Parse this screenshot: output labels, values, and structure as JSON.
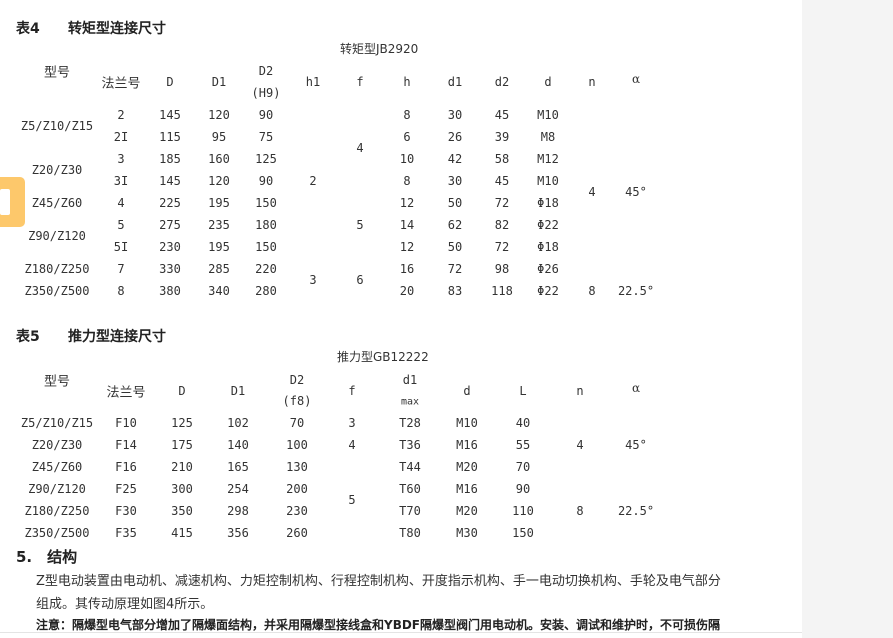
{
  "table4": {
    "label": "表4",
    "title": "转矩型连接尺寸",
    "subtitle": "转矩型JB2920",
    "model_header": "型号",
    "headers": [
      "法兰号",
      "D",
      "D1",
      "D2",
      "h1",
      "f",
      "h",
      "d1",
      "d2",
      "d",
      "n",
      "α"
    ],
    "d2_sub": "(H9)",
    "models": [
      {
        "text": "Z5/Z10/Z15",
        "rows": [
          0,
          1
        ]
      },
      {
        "text": "Z20/Z30",
        "rows": [
          2,
          3
        ]
      },
      {
        "text": "Z45/Z60",
        "rows": [
          4,
          4
        ]
      },
      {
        "text": "Z90/Z120",
        "rows": [
          5,
          6
        ]
      },
      {
        "text": "Z180/Z250",
        "rows": [
          7,
          7
        ]
      },
      {
        "text": "Z350/Z500",
        "rows": [
          8,
          8
        ]
      }
    ],
    "rows": [
      [
        "2",
        "145",
        "120",
        "90",
        "8",
        "30",
        "45",
        "M10"
      ],
      [
        "2I",
        "115",
        "95",
        "75",
        "6",
        "26",
        "39",
        "M8"
      ],
      [
        "3",
        "185",
        "160",
        "125",
        "10",
        "42",
        "58",
        "M12"
      ],
      [
        "3I",
        "145",
        "120",
        "90",
        "8",
        "30",
        "45",
        "M10"
      ],
      [
        "4",
        "225",
        "195",
        "150",
        "12",
        "50",
        "72",
        "Φ18"
      ],
      [
        "5",
        "275",
        "235",
        "180",
        "14",
        "62",
        "82",
        "Φ22"
      ],
      [
        "5I",
        "230",
        "195",
        "150",
        "12",
        "50",
        "72",
        "Φ18"
      ],
      [
        "7",
        "330",
        "285",
        "220",
        "16",
        "72",
        "98",
        "Φ26"
      ],
      [
        "8",
        "380",
        "340",
        "280",
        "20",
        "83",
        "118",
        "Φ22"
      ]
    ],
    "h1": [
      {
        "text": "2",
        "rows": [
          0,
          6
        ]
      },
      {
        "text": "3",
        "rows": [
          7,
          8
        ]
      }
    ],
    "f": [
      {
        "text": "4",
        "rows": [
          0,
          3
        ]
      },
      {
        "text": "5",
        "rows": [
          4,
          6
        ]
      },
      {
        "text": "6",
        "rows": [
          7,
          8
        ]
      }
    ],
    "n": [
      {
        "text": "4",
        "rows": [
          0,
          7
        ]
      },
      {
        "text": "8",
        "rows": [
          8,
          8
        ]
      }
    ],
    "alpha": [
      {
        "text": "45°",
        "rows": [
          0,
          7
        ]
      },
      {
        "text": "22.5°",
        "rows": [
          8,
          8
        ]
      }
    ]
  },
  "table5": {
    "label": "表5",
    "title": "推力型连接尺寸",
    "subtitle": "推力型GB12222",
    "model_header": "型号",
    "headers": [
      "法兰号",
      "D",
      "D1",
      "D2",
      "f",
      "d1",
      "d",
      "L",
      "n",
      "α"
    ],
    "d2_sub": "(f8)",
    "d1_sub": "max",
    "rows": [
      [
        "Z5/Z10/Z15",
        "F10",
        "125",
        "102",
        "70",
        "T28",
        "M10",
        "40"
      ],
      [
        "Z20/Z30",
        "F14",
        "175",
        "140",
        "100",
        "T36",
        "M16",
        "55"
      ],
      [
        "Z45/Z60",
        "F16",
        "210",
        "165",
        "130",
        "T44",
        "M20",
        "70"
      ],
      [
        "Z90/Z120",
        "F25",
        "300",
        "254",
        "200",
        "T60",
        "M16",
        "90"
      ],
      [
        "Z180/Z250",
        "F30",
        "350",
        "298",
        "230",
        "T70",
        "M20",
        "110"
      ],
      [
        "Z350/Z500",
        "F35",
        "415",
        "356",
        "260",
        "T80",
        "M30",
        "150"
      ]
    ],
    "f": [
      {
        "text": "3",
        "rows": [
          0,
          0
        ]
      },
      {
        "text": "4",
        "rows": [
          1,
          1
        ]
      },
      {
        "text": "5",
        "rows": [
          2,
          5
        ]
      }
    ],
    "n": [
      {
        "text": "4",
        "rows": [
          0,
          2
        ]
      },
      {
        "text": "8",
        "rows": [
          3,
          5
        ]
      }
    ],
    "alpha": [
      {
        "text": "45°",
        "rows": [
          0,
          2
        ]
      },
      {
        "text": "22.5°",
        "rows": [
          3,
          5
        ]
      }
    ]
  },
  "section": {
    "heading": "5.　结构",
    "para1": "Z型电动装置由电动机、减速机构、力矩控制机构、行程控制机构、开度指示机构、手一电动切换机构、手轮及电气部分",
    "para2": "组成。其传动原理如图4所示。",
    "note": "注意：隔爆型电气部分增加了隔爆面结构，并采用隔爆型接线盒和YBDF隔爆型阀门用电动机。安装、调试和维护时，不可损伤隔"
  }
}
